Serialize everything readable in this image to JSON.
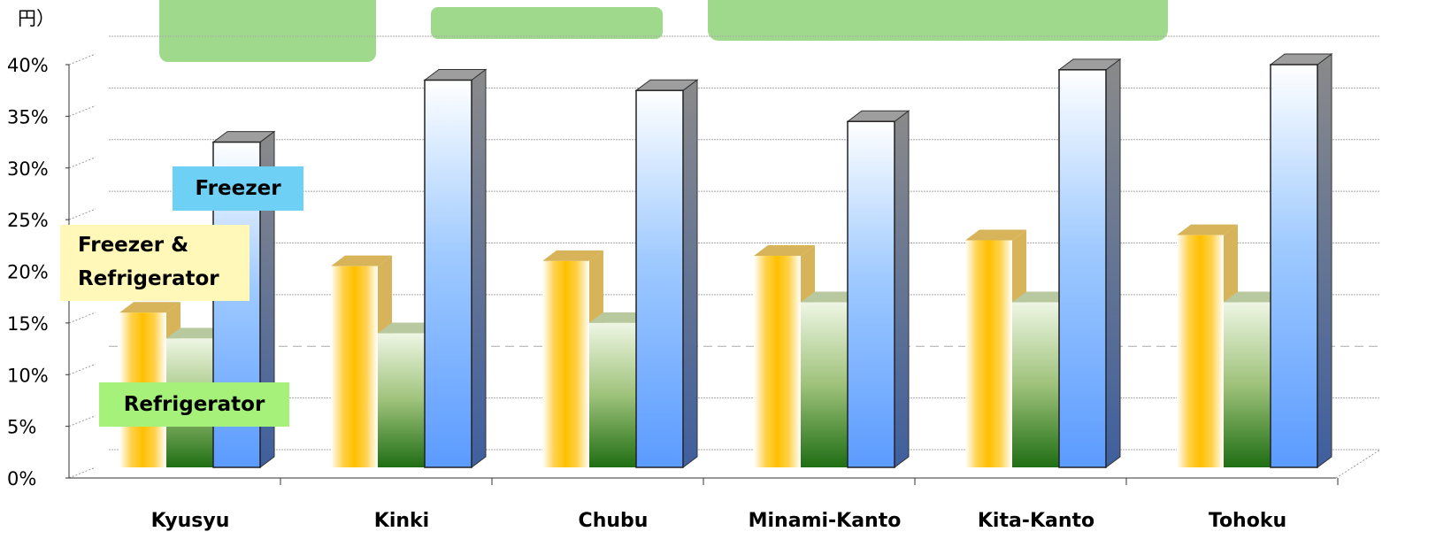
{
  "unit_label": "円）",
  "legend": {
    "freezer": "Freezer",
    "freezer_refrigerator_line1": "Freezer &",
    "freezer_refrigerator_line2": "Refrigerator",
    "refrigerator": "Refrigerator"
  },
  "colors": {
    "freezer_refrigerator": "#ffc000",
    "refrigerator": "#2e7d1e",
    "freezer": "#5b9bff",
    "legend_freezer_bg": "#6fd0f5",
    "legend_ff_bg": "#fff8b8",
    "legend_refrigerator_bg": "#a6f17a",
    "decorative_blobs": "#9ed98c"
  },
  "chart_data": {
    "type": "bar",
    "categories": [
      "Kyusyu",
      "Kinki",
      "Chubu",
      "Minami-Kanto",
      "Kita-Kanto",
      "Tohoku"
    ],
    "series": [
      {
        "name": "Freezer & Refrigerator",
        "values": [
          16,
          20.5,
          21,
          21.5,
          23,
          23.5
        ]
      },
      {
        "name": "Refrigerator",
        "values": [
          13.5,
          14,
          15,
          17,
          17,
          17
        ]
      },
      {
        "name": "Freezer",
        "values": [
          32.5,
          38.5,
          37.5,
          34.5,
          39.5,
          40
        ]
      }
    ],
    "ylim": [
      0,
      40
    ],
    "yticks": [
      "0%",
      "5%",
      "10%",
      "15%",
      "20%",
      "25%",
      "30%",
      "35%",
      "40%"
    ],
    "grid": true,
    "legend_placement": "left (inline labels)"
  }
}
